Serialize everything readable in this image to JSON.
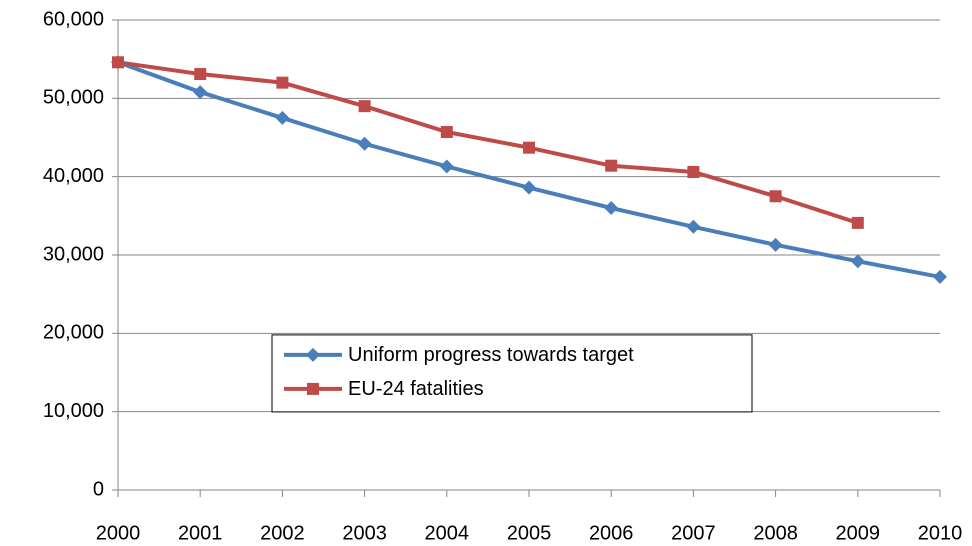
{
  "chart_data": {
    "type": "line",
    "x": [
      2000,
      2001,
      2002,
      2003,
      2004,
      2005,
      2006,
      2007,
      2008,
      2009,
      2010
    ],
    "series": [
      {
        "name": "Uniform progress towards target",
        "color": "#4a7ebb",
        "marker": "diamond",
        "values": [
          54600,
          50800,
          47500,
          44200,
          41300,
          38600,
          36000,
          33600,
          31300,
          29200,
          27200
        ]
      },
      {
        "name": "EU-24 fatalities",
        "color": "#be4b48",
        "marker": "square",
        "values": [
          54600,
          53100,
          52000,
          49000,
          45700,
          43700,
          41400,
          40600,
          37500,
          34100,
          null
        ]
      }
    ],
    "xlim": [
      2000,
      2010
    ],
    "xticks": [
      2000,
      2001,
      2002,
      2003,
      2004,
      2005,
      2006,
      2007,
      2008,
      2009,
      2010
    ],
    "ylim": [
      0,
      60000
    ],
    "yticks": [
      0,
      {
        "value": 10000,
        "label": "10,000"
      },
      {
        "value": 20000,
        "label": "20,000"
      },
      {
        "value": 30000,
        "label": "30,000"
      },
      {
        "value": 40000,
        "label": "40,000"
      },
      {
        "value": 50000,
        "label": "50,000"
      },
      {
        "value": 60000,
        "label": "60,000"
      }
    ],
    "grid": true,
    "legend": "center"
  }
}
